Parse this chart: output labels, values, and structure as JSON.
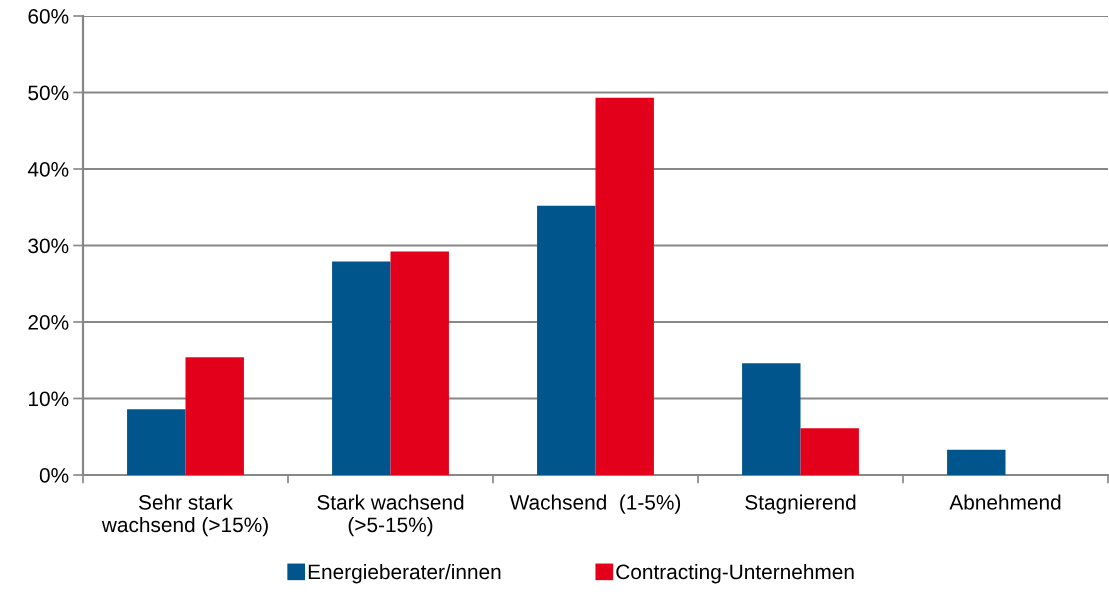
{
  "chart_data": {
    "type": "bar",
    "categories": [
      "Sehr stark\nwachsend (>15%)",
      "Stark wachsend\n(>5-15%)",
      "Wachsend  (1-5%)",
      "Stagnierend",
      "Abnehmend"
    ],
    "series": [
      {
        "name": "Energieberater/innen",
        "color": "#00558c",
        "values": [
          8.6,
          27.9,
          35.2,
          14.6,
          3.3
        ]
      },
      {
        "name": "Contracting-Unternehmen",
        "color": "#e2001a",
        "values": [
          15.4,
          29.2,
          49.3,
          6.1,
          0
        ]
      }
    ],
    "ylim": [
      0,
      60
    ],
    "yticks": [
      {
        "value": 0,
        "label": "0%"
      },
      {
        "value": 10,
        "label": "10%"
      },
      {
        "value": 20,
        "label": "20%"
      },
      {
        "value": 30,
        "label": "30%"
      },
      {
        "value": 40,
        "label": "40%"
      },
      {
        "value": 50,
        "label": "50%"
      },
      {
        "value": 60,
        "label": "60%"
      }
    ],
    "grid": "y",
    "legend": "bottom"
  }
}
